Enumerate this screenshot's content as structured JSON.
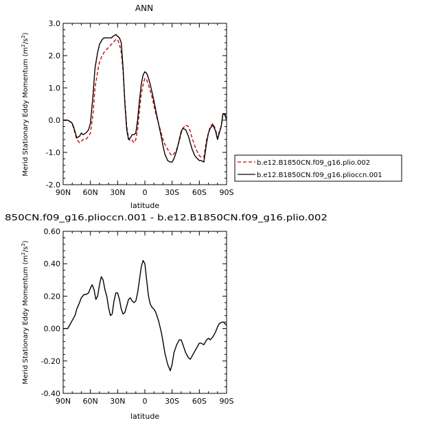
{
  "chart_data": [
    {
      "type": "line",
      "title": "ANN",
      "xlabel": "latitude",
      "ylabel": "Merid Stationary Eddy Momentum (m²/s²)",
      "ylabel_main": "Merid Stationary Eddy Momentum (m",
      "ylabel_unit_sup1": "2",
      "ylabel_mid": "/s",
      "ylabel_unit_sup2": "2",
      "ylabel_close": ")",
      "xlim": [
        90,
        -90
      ],
      "ylim": [
        -2.0,
        3.0
      ],
      "x_ticks": [
        90,
        60,
        30,
        0,
        -30,
        -60,
        -90
      ],
      "x_tick_labels": [
        "90N",
        "60N",
        "30N",
        "0",
        "30S",
        "60S",
        "90S"
      ],
      "y_ticks": [
        -2.0,
        -1.0,
        0.0,
        1.0,
        2.0,
        3.0
      ],
      "y_tick_labels": [
        "-2.0",
        "-1.0",
        "0.0",
        "1.0",
        "2.0",
        "3.0"
      ],
      "legend_placement": "outside-right",
      "series": [
        {
          "name": "b.e12.B1850CN.f09_g16.plio.002",
          "color": "#cc0000",
          "style": "dashed",
          "x": [
            90,
            85,
            82,
            80,
            78,
            75,
            72,
            70,
            68,
            65,
            62,
            60,
            57,
            55,
            52,
            50,
            47,
            45,
            42,
            40,
            37,
            35,
            32,
            30,
            28,
            26,
            24,
            22,
            20,
            18,
            16,
            14,
            12,
            10,
            8,
            6,
            4,
            2,
            0,
            -2,
            -4,
            -6,
            -8,
            -10,
            -12,
            -15,
            -18,
            -20,
            -22,
            -25,
            -28,
            -30,
            -32,
            -35,
            -38,
            -40,
            -42,
            -45,
            -48,
            -50,
            -52,
            -55,
            -58,
            -60,
            -62,
            -65,
            -68,
            -70,
            -72,
            -75,
            -78,
            -80,
            -82,
            -84,
            -86,
            -88,
            -90
          ],
          "y": [
            0.0,
            -0.02,
            -0.05,
            -0.12,
            -0.3,
            -0.6,
            -0.7,
            -0.65,
            -0.6,
            -0.6,
            -0.5,
            -0.4,
            0.2,
            1.0,
            1.5,
            1.8,
            2.0,
            2.1,
            2.2,
            2.25,
            2.35,
            2.4,
            2.5,
            2.5,
            2.35,
            2.1,
            1.5,
            0.6,
            -0.2,
            -0.55,
            -0.65,
            -0.62,
            -0.7,
            -0.6,
            -0.3,
            0.3,
            0.8,
            1.1,
            1.3,
            1.25,
            1.1,
            0.9,
            0.7,
            0.45,
            0.2,
            -0.1,
            -0.4,
            -0.6,
            -0.75,
            -0.9,
            -1.05,
            -1.1,
            -1.05,
            -0.9,
            -0.65,
            -0.4,
            -0.25,
            -0.15,
            -0.2,
            -0.35,
            -0.55,
            -0.8,
            -1.0,
            -1.1,
            -1.15,
            -1.15,
            -0.6,
            -0.4,
            -0.2,
            -0.1,
            -0.3,
            -0.55,
            -0.35,
            -0.2,
            0.2,
            0.15,
            0.0
          ]
        },
        {
          "name": "b.e12.B1850CN.f09_g16.plioccn.001",
          "color": "#000000",
          "style": "solid",
          "x": [
            90,
            85,
            82,
            80,
            78,
            75,
            72,
            70,
            68,
            65,
            62,
            60,
            57,
            55,
            52,
            50,
            47,
            45,
            42,
            40,
            37,
            35,
            32,
            30,
            28,
            26,
            24,
            22,
            20,
            18,
            16,
            14,
            12,
            10,
            8,
            6,
            4,
            2,
            0,
            -2,
            -4,
            -6,
            -8,
            -10,
            -12,
            -15,
            -18,
            -20,
            -22,
            -25,
            -28,
            -30,
            -32,
            -35,
            -38,
            -40,
            -42,
            -45,
            -48,
            -50,
            -52,
            -55,
            -58,
            -60,
            -62,
            -65,
            -68,
            -70,
            -72,
            -75,
            -78,
            -80,
            -82,
            -84,
            -86,
            -88,
            -90
          ],
          "y": [
            0.0,
            0.0,
            -0.05,
            -0.1,
            -0.25,
            -0.55,
            -0.5,
            -0.4,
            -0.45,
            -0.4,
            -0.3,
            -0.1,
            0.8,
            1.6,
            2.1,
            2.35,
            2.5,
            2.55,
            2.55,
            2.55,
            2.55,
            2.6,
            2.65,
            2.6,
            2.55,
            2.4,
            1.6,
            0.5,
            -0.3,
            -0.6,
            -0.55,
            -0.45,
            -0.45,
            -0.4,
            0.0,
            0.6,
            1.1,
            1.4,
            1.5,
            1.45,
            1.3,
            1.1,
            0.85,
            0.6,
            0.3,
            -0.1,
            -0.5,
            -0.8,
            -1.05,
            -1.25,
            -1.3,
            -1.3,
            -1.2,
            -0.95,
            -0.6,
            -0.35,
            -0.25,
            -0.3,
            -0.5,
            -0.7,
            -0.9,
            -1.1,
            -1.2,
            -1.25,
            -1.25,
            -1.3,
            -0.7,
            -0.4,
            -0.25,
            -0.15,
            -0.35,
            -0.6,
            -0.4,
            -0.2,
            0.2,
            0.2,
            0.0
          ]
        }
      ]
    },
    {
      "type": "line",
      "title": "850CN.f09_g16.plioccn.001 - b.e12.B1850CN.f09_g16.plio.002",
      "xlabel": "latitude",
      "ylabel": "Merid Stationary Eddy Momentum (m²/s²)",
      "ylabel_main": "Merid Stationary Eddy Momentum (m",
      "ylabel_unit_sup1": "2",
      "ylabel_mid": "/s",
      "ylabel_unit_sup2": "2",
      "ylabel_close": ")",
      "xlim": [
        90,
        -90
      ],
      "ylim": [
        -0.4,
        0.6
      ],
      "x_ticks": [
        90,
        60,
        30,
        0,
        -30,
        -60,
        -90
      ],
      "x_tick_labels": [
        "90N",
        "60N",
        "30N",
        "0",
        "30S",
        "60S",
        "90S"
      ],
      "y_ticks": [
        -0.4,
        -0.2,
        0.0,
        0.2,
        0.4,
        0.6
      ],
      "y_tick_labels": [
        "-0.40",
        "-0.20",
        "0.00",
        "0.20",
        "0.40",
        "0.60"
      ],
      "series": [
        {
          "color": "#000000",
          "style": "solid",
          "x": [
            90,
            87,
            85,
            83,
            80,
            77,
            75,
            72,
            70,
            67,
            65,
            62,
            60,
            58,
            56,
            54,
            52,
            50,
            48,
            46,
            44,
            42,
            40,
            38,
            36,
            34,
            32,
            30,
            28,
            26,
            24,
            22,
            20,
            18,
            16,
            14,
            12,
            10,
            8,
            6,
            4,
            2,
            0,
            -2,
            -4,
            -6,
            -8,
            -10,
            -12,
            -15,
            -18,
            -20,
            -22,
            -25,
            -28,
            -30,
            -32,
            -35,
            -38,
            -40,
            -42,
            -45,
            -48,
            -50,
            -52,
            -55,
            -58,
            -60,
            -62,
            -65,
            -68,
            -70,
            -72,
            -75,
            -78,
            -80,
            -82,
            -85,
            -87,
            -88,
            -90
          ],
          "y": [
            0.0,
            0.0,
            0.0,
            0.02,
            0.05,
            0.08,
            0.12,
            0.16,
            0.19,
            0.21,
            0.21,
            0.22,
            0.25,
            0.27,
            0.24,
            0.18,
            0.2,
            0.27,
            0.32,
            0.3,
            0.24,
            0.2,
            0.13,
            0.08,
            0.09,
            0.17,
            0.22,
            0.22,
            0.18,
            0.12,
            0.09,
            0.1,
            0.14,
            0.18,
            0.19,
            0.17,
            0.16,
            0.17,
            0.22,
            0.3,
            0.38,
            0.42,
            0.4,
            0.3,
            0.2,
            0.15,
            0.13,
            0.12,
            0.1,
            0.05,
            -0.02,
            -0.08,
            -0.15,
            -0.22,
            -0.26,
            -0.22,
            -0.15,
            -0.1,
            -0.07,
            -0.07,
            -0.1,
            -0.15,
            -0.18,
            -0.19,
            -0.17,
            -0.14,
            -0.11,
            -0.09,
            -0.09,
            -0.1,
            -0.07,
            -0.06,
            -0.07,
            -0.05,
            -0.02,
            0.01,
            0.03,
            0.04,
            0.04,
            0.03,
            0.02
          ]
        }
      ]
    }
  ]
}
